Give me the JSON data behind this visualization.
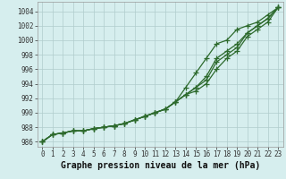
{
  "x": [
    0,
    1,
    2,
    3,
    4,
    5,
    6,
    7,
    8,
    9,
    10,
    11,
    12,
    13,
    14,
    15,
    16,
    17,
    18,
    19,
    20,
    21,
    22,
    23
  ],
  "series": [
    [
      986.0,
      987.0,
      987.2,
      987.5,
      987.5,
      987.8,
      988.0,
      988.2,
      988.5,
      989.0,
      989.5,
      990.0,
      990.5,
      991.5,
      993.5,
      995.5,
      997.5,
      999.5,
      1000.0,
      1001.5,
      1002.0,
      1002.5,
      1003.5,
      1004.5
    ],
    [
      986.0,
      987.0,
      987.2,
      987.5,
      987.5,
      987.8,
      988.0,
      988.2,
      988.5,
      989.0,
      989.5,
      990.0,
      990.5,
      991.5,
      992.5,
      993.5,
      995.0,
      997.5,
      998.5,
      999.5,
      1001.0,
      1002.0,
      1003.0,
      1004.5
    ],
    [
      986.0,
      987.0,
      987.2,
      987.5,
      987.5,
      987.8,
      988.0,
      988.2,
      988.5,
      989.0,
      989.5,
      990.0,
      990.5,
      991.5,
      992.5,
      993.5,
      994.5,
      997.0,
      998.0,
      999.0,
      1001.0,
      1002.0,
      1003.0,
      1004.5
    ],
    [
      986.0,
      987.0,
      987.2,
      987.5,
      987.5,
      987.8,
      988.0,
      988.2,
      988.5,
      989.0,
      989.5,
      990.0,
      990.5,
      991.5,
      992.5,
      993.0,
      994.0,
      996.0,
      997.5,
      998.5,
      1000.5,
      1001.5,
      1002.5,
      1004.5
    ]
  ],
  "line_color": "#2d6a2d",
  "marker": "+",
  "markersize": 4,
  "linewidth": 0.9,
  "bg_color": "#d6eeee",
  "grid_color": "#b0cccc",
  "ylabel_ticks": [
    986,
    988,
    990,
    992,
    994,
    996,
    998,
    1000,
    1002,
    1004
  ],
  "ylim": [
    985.3,
    1005.3
  ],
  "xlim": [
    -0.5,
    23.5
  ],
  "xlabel": "Graphe pression niveau de la mer (hPa)",
  "tick_fontsize": 5.5,
  "label_fontsize": 7.0
}
